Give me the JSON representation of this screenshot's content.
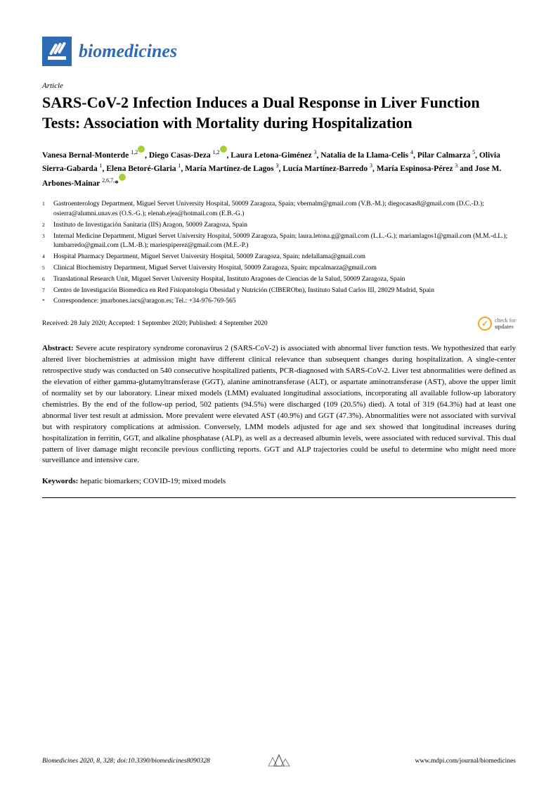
{
  "journal": {
    "name": "biomedicines",
    "logo_bg": "#2e6bb5",
    "name_color": "#2e6bb5"
  },
  "article_type": "Article",
  "title": "SARS-CoV-2 Infection Induces a Dual Response in Liver Function Tests: Association with Mortality during Hospitalization",
  "authors_html": "Vanesa Bernal-Monterde <sup>1,2</sup><span class='orcid'></span>, Diego Casas-Deza <sup>1,2</sup><span class='orcid'></span>, Laura Letona-Giménez <sup>3</sup>, Natalia de la Llama-Celis <sup>4</sup>, Pilar Calmarza <sup>5</sup>, Olivia Sierra-Gabarda <sup>1</sup>, Elena Betoré-Glaria <sup>1</sup>, María Martínez-de Lagos <sup>3</sup>, Lucía Martínez-Barredo <sup>3</sup>, María Espinosa-Pérez <sup>3</sup> and Jose M. Arbones-Mainar <sup>2,6,7,</sup>*<span class='orcid'></span>",
  "affiliations": [
    {
      "num": "1",
      "text": "Gastroenterology Department, Miguel Servet University Hospital, 50009 Zaragoza, Spain; vbernalm@gmail.com (V.B.-M.); diegocasas8@gmail.com (D.C.-D.); osierra@alumni.unav.es (O.S.-G.); elenab.ejea@hotmail.com (E.B.-G.)"
    },
    {
      "num": "2",
      "text": "Instituto de Investigación Sanitaria (IIS) Aragon, 50009 Zaragoza, Spain"
    },
    {
      "num": "3",
      "text": "Internal Medicine Department, Miguel Servet University Hospital, 50009 Zaragoza, Spain; laura.letona.g@gmail.com (L.L.-G.); mariamlagos1@gmail.com (M.M.-d.L.); lumbarredo@gmail.com (L.M.-B.); mariespiperez@gmail.com (M.E.-P.)"
    },
    {
      "num": "4",
      "text": "Hospital Pharmacy Department, Miguel Servet University Hospital, 50009 Zaragoza, Spain; ndelallama@gmail.com"
    },
    {
      "num": "5",
      "text": "Clinical Biochemistry Department, Miguel Servet University Hospital, 50009 Zaragoza, Spain; mpcalmarza@gmail.com"
    },
    {
      "num": "6",
      "text": "Translational Research Unit, Miguel Servet University Hospital, Instituto Aragones de Ciencias de la Salud, 50009 Zaragoza, Spain"
    },
    {
      "num": "7",
      "text": "Centro de Investigación Biomedica en Red Fisiopatología Obesidad y Nutrición (CIBERObn), Instituto Salud Carlos III, 28029 Madrid, Spain"
    },
    {
      "num": "*",
      "text": "Correspondence: jmarbones.iacs@aragon.es; Tel.: +34-976-769-565"
    }
  ],
  "dates": "Received: 28 July 2020; Accepted: 1 September 2020; Published: 4 September 2020",
  "updates_label": "check for",
  "updates_label2": "updates",
  "abstract_label": "Abstract:",
  "abstract": "Severe acute respiratory syndrome coronavirus 2 (SARS-CoV-2) is associated with abnormal liver function tests. We hypothesized that early altered liver biochemistries at admission might have different clinical relevance than subsequent changes during hospitalization. A single-center retrospective study was conducted on 540 consecutive hospitalized patients, PCR-diagnosed with SARS-CoV-2. Liver test abnormalities were defined as the elevation of either gamma-glutamyltransferase (GGT), alanine aminotransferase (ALT), or aspartate aminotransferase (AST), above the upper limit of normality set by our laboratory. Linear mixed models (LMM) evaluated longitudinal associations, incorporating all available follow-up laboratory chemistries. By the end of the follow-up period, 502 patients (94.5%) were discharged (109 (20.5%) died). A total of 319 (64.3%) had at least one abnormal liver test result at admission. More prevalent were elevated AST (40.9%) and GGT (47.3%). Abnormalities were not associated with survival but with respiratory complications at admission. Conversely, LMM models adjusted for age and sex showed that longitudinal increases during hospitalization in ferritin, GGT, and alkaline phosphatase (ALP), as well as a decreased albumin levels, were associated with reduced survival. This dual pattern of liver damage might reconcile previous conflicting reports. GGT and ALP trajectories could be useful to determine who might need more surveillance and intensive care.",
  "keywords_label": "Keywords:",
  "keywords": "hepatic biomarkers; COVID-19; mixed models",
  "footer": {
    "left": "Biomedicines 2020, 8, 328; doi:10.3390/biomedicines8090328",
    "right": "www.mdpi.com/journal/biomedicines"
  },
  "colors": {
    "orcid": "#a6ce39",
    "updates_ring": "#f5a623",
    "text": "#000000"
  }
}
